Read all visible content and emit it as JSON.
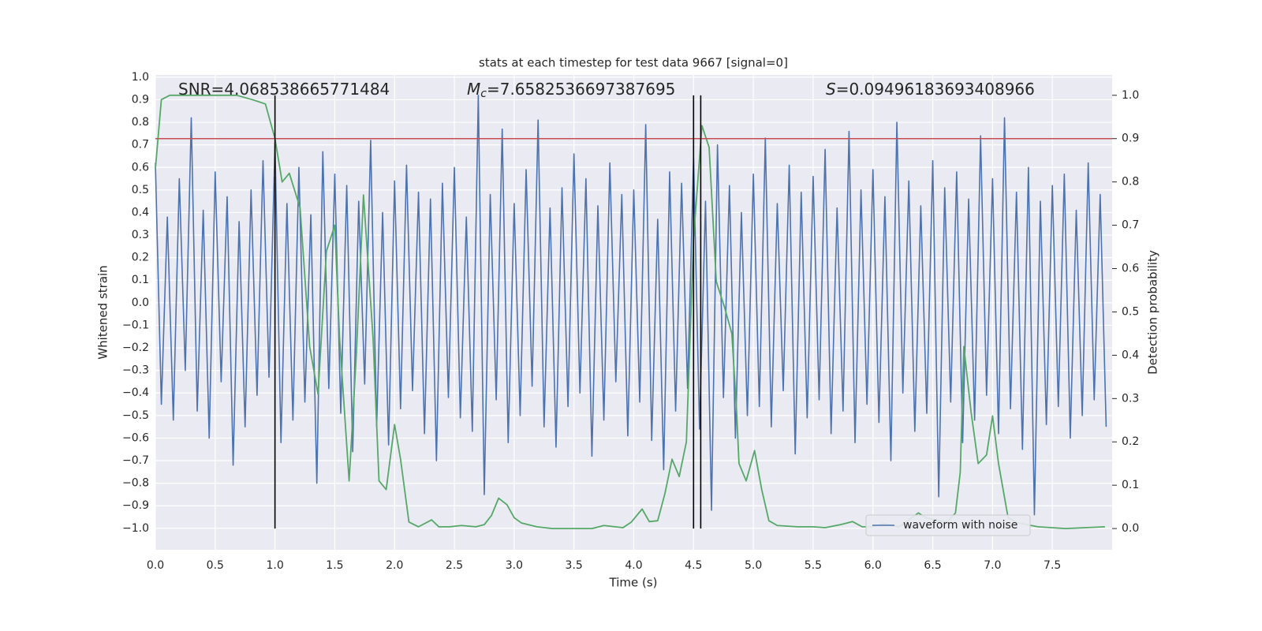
{
  "chart_data": {
    "type": "line",
    "title": "stats at each timestep for test data 9667 [signal=0]",
    "xlabel": "Time (s)",
    "ylabel": "Whitened strain",
    "y2label": "Detection probability",
    "annotations": [
      {
        "text": "SNR=4.068538665771484"
      },
      {
        "symbol": "M",
        "subscript": "c",
        "text": "=7.6582536697387695"
      },
      {
        "symbol": "S",
        "text": "=0.09496183693408966"
      }
    ],
    "xlim": [
      0,
      8.0
    ],
    "ylim": [
      -1.095,
      1.01
    ],
    "y2lim": [
      -0.049,
      1.047
    ],
    "xticks": [
      {
        "value": 0,
        "label": "0.0"
      },
      0.5,
      {
        "value": 1,
        "label": "1.0"
      },
      1.5,
      {
        "value": 2,
        "label": "2.0"
      },
      2.5,
      {
        "value": 3,
        "label": "3.0"
      },
      3.5,
      {
        "value": 4,
        "label": "4.0"
      },
      4.5,
      {
        "value": 5,
        "label": "5.0"
      },
      5.5,
      {
        "value": 6,
        "label": "6.0"
      },
      6.5,
      {
        "value": 7,
        "label": "7.0"
      },
      7.5
    ],
    "yticks": [
      {
        "value": -1,
        "label": "−1.0"
      },
      {
        "value": -0.9,
        "label": "−0.9"
      },
      {
        "value": -0.8,
        "label": "−0.8"
      },
      {
        "value": -0.7,
        "label": "−0.7"
      },
      {
        "value": -0.6,
        "label": "−0.6"
      },
      {
        "value": -0.5,
        "label": "−0.5"
      },
      {
        "value": -0.4,
        "label": "−0.4"
      },
      {
        "value": -0.3,
        "label": "−0.3"
      },
      {
        "value": -0.2,
        "label": "−0.2"
      },
      {
        "value": -0.1,
        "label": "−0.1"
      },
      {
        "value": 0,
        "label": "0.0"
      },
      0.1,
      0.2,
      0.3,
      0.4,
      0.5,
      0.6,
      0.7,
      0.8,
      0.9,
      {
        "value": 1,
        "label": "1.0"
      }
    ],
    "y2ticks": [
      {
        "value": 0,
        "label": "0.0"
      },
      0.1,
      0.2,
      0.3,
      0.4,
      0.5,
      0.6,
      0.7,
      0.8,
      0.9,
      {
        "value": 1,
        "label": "1.0"
      }
    ],
    "grid": true,
    "legend": "lower right",
    "hline": {
      "y2": 0.9,
      "color": "#c44e52"
    },
    "vlines": {
      "x": [
        1.0,
        4.5,
        4.56
      ],
      "y2min": 0,
      "y2max": 1,
      "color": "#000000"
    },
    "series": [
      {
        "name": "waveform with noise",
        "color": "#4c72b0",
        "x": [
          0,
          0.05,
          0.1,
          0.15,
          0.2,
          0.25,
          0.3,
          0.35,
          0.4,
          0.45,
          0.5,
          0.55,
          0.6,
          0.65,
          0.7,
          0.75,
          0.8,
          0.85,
          0.9,
          0.95,
          1,
          1.05,
          1.1,
          1.15,
          1.2,
          1.25,
          1.3,
          1.35,
          1.4,
          1.45,
          1.5,
          1.55,
          1.6,
          1.65,
          1.7,
          1.75,
          1.8,
          1.85,
          1.9,
          1.95,
          2,
          2.05,
          2.1,
          2.15,
          2.2,
          2.25,
          2.3,
          2.35,
          2.4,
          2.45,
          2.5,
          2.55,
          2.6,
          2.65,
          2.7,
          2.75,
          2.8,
          2.85,
          2.9,
          2.95,
          3,
          3.05,
          3.1,
          3.15,
          3.2,
          3.25,
          3.3,
          3.35,
          3.4,
          3.45,
          3.5,
          3.55,
          3.6,
          3.65,
          3.7,
          3.75,
          3.8,
          3.85,
          3.9,
          3.95,
          4,
          4.05,
          4.1,
          4.15,
          4.2,
          4.25,
          4.3,
          4.35,
          4.4,
          4.45,
          4.5,
          4.55,
          4.6,
          4.65,
          4.7,
          4.75,
          4.8,
          4.85,
          4.9,
          4.95,
          5,
          5.05,
          5.1,
          5.15,
          5.2,
          5.25,
          5.3,
          5.35,
          5.4,
          5.45,
          5.5,
          5.55,
          5.6,
          5.65,
          5.7,
          5.75,
          5.8,
          5.85,
          5.9,
          5.95,
          6,
          6.05,
          6.1,
          6.15,
          6.2,
          6.25,
          6.3,
          6.35,
          6.4,
          6.45,
          6.5,
          6.55,
          6.6,
          6.65,
          6.7,
          6.75,
          6.8,
          6.85,
          6.9,
          6.95,
          7,
          7.05,
          7.1,
          7.15,
          7.2,
          7.25,
          7.3,
          7.35,
          7.4,
          7.45,
          7.5,
          7.55,
          7.6,
          7.65,
          7.7,
          7.75,
          7.8,
          7.85,
          7.9,
          7.95
        ],
        "values": [
          0.62,
          -0.45,
          0.38,
          -0.52,
          0.55,
          -0.3,
          0.82,
          -0.48,
          0.41,
          -0.6,
          0.58,
          -0.35,
          0.47,
          -0.72,
          0.36,
          -0.55,
          0.5,
          -0.41,
          0.63,
          -0.33,
          0.71,
          -0.62,
          0.44,
          -0.52,
          0.6,
          -0.44,
          0.39,
          -0.8,
          0.67,
          -0.38,
          0.57,
          -0.49,
          0.52,
          -0.66,
          0.45,
          -0.36,
          0.72,
          -0.55,
          0.4,
          -0.63,
          0.54,
          -0.47,
          0.61,
          -0.39,
          0.49,
          -0.58,
          0.46,
          -0.7,
          0.53,
          -0.42,
          0.6,
          -0.51,
          0.38,
          -0.57,
          0.92,
          -0.85,
          0.48,
          -0.43,
          0.77,
          -0.62,
          0.44,
          -0.5,
          0.59,
          -0.37,
          0.81,
          -0.55,
          0.42,
          -0.64,
          0.51,
          -0.46,
          0.66,
          -0.4,
          0.55,
          -0.68,
          0.43,
          -0.52,
          0.62,
          -0.35,
          0.48,
          -0.59,
          0.5,
          -0.44,
          0.79,
          -0.61,
          0.37,
          -0.74,
          0.58,
          -0.48,
          0.53,
          -0.38,
          0.64,
          -0.56,
          0.45,
          -0.92,
          0.7,
          -0.42,
          0.52,
          -0.6,
          0.4,
          -0.5,
          0.57,
          -0.46,
          0.73,
          -0.55,
          0.44,
          -0.39,
          0.61,
          -0.67,
          0.49,
          -0.51,
          0.56,
          -0.43,
          0.68,
          -0.58,
          0.42,
          -0.48,
          0.76,
          -0.62,
          0.5,
          -0.45,
          0.59,
          -0.53,
          0.47,
          -0.7,
          0.8,
          -0.4,
          0.54,
          -0.57,
          0.43,
          -0.49,
          0.63,
          -0.86,
          0.51,
          -0.44,
          0.58,
          -0.62,
          0.46,
          -0.52,
          0.74,
          -0.41,
          0.55,
          -0.58,
          0.82,
          -0.47,
          0.49,
          -0.65,
          0.6,
          -0.94,
          0.45,
          -0.54,
          0.52,
          -0.46,
          0.57,
          -0.6,
          0.41,
          -0.5,
          0.62,
          -0.43,
          0.48,
          -0.55
        ]
      },
      {
        "color": "#55a868",
        "axis": "y2",
        "x": [
          0,
          0.05,
          0.12,
          0.68,
          0.81,
          0.92,
          1.0,
          1.06,
          1.12,
          1.21,
          1.29,
          1.36,
          1.43,
          1.5,
          1.54,
          1.62,
          1.68,
          1.74,
          1.82,
          1.87,
          1.93,
          2.0,
          2.05,
          2.12,
          2.2,
          2.31,
          2.37,
          2.46,
          2.56,
          2.68,
          2.75,
          2.81,
          2.87,
          2.94,
          3.0,
          3.06,
          3.19,
          3.32,
          3.65,
          3.75,
          3.91,
          3.98,
          4.07,
          4.13,
          4.2,
          4.26,
          4.32,
          4.38,
          4.44,
          4.5,
          4.57,
          4.63,
          4.69,
          4.76,
          4.82,
          4.86,
          4.88,
          4.94,
          5.01,
          5.07,
          5.13,
          5.2,
          5.37,
          5.5,
          5.6,
          5.73,
          5.83,
          5.91,
          5.99,
          6.09,
          6.22,
          6.29,
          6.38,
          6.44,
          6.52,
          6.62,
          6.69,
          6.73,
          6.76,
          6.82,
          6.88,
          6.95,
          7.0,
          7.05,
          7.13,
          7.21,
          7.38,
          7.61,
          7.94
        ],
        "values": [
          0.83,
          0.99,
          1.0,
          1.0,
          0.99,
          0.98,
          0.9,
          0.8,
          0.82,
          0.74,
          0.42,
          0.31,
          0.64,
          0.7,
          0.44,
          0.11,
          0.4,
          0.77,
          0.44,
          0.11,
          0.09,
          0.24,
          0.16,
          0.015,
          0.004,
          0.02,
          0.004,
          0.004,
          0.007,
          0.004,
          0.009,
          0.03,
          0.07,
          0.055,
          0.025,
          0.013,
          0.004,
          0.0,
          0.0,
          0.007,
          0.002,
          0.015,
          0.045,
          0.016,
          0.018,
          0.08,
          0.16,
          0.12,
          0.2,
          0.67,
          0.93,
          0.88,
          0.57,
          0.51,
          0.45,
          0.27,
          0.15,
          0.11,
          0.18,
          0.09,
          0.018,
          0.007,
          0.004,
          0.004,
          0.002,
          0.009,
          0.016,
          0.004,
          0.004,
          0.011,
          0.004,
          0.018,
          0.036,
          0.025,
          0.02,
          0.015,
          0.036,
          0.13,
          0.42,
          0.27,
          0.15,
          0.17,
          0.26,
          0.15,
          0.025,
          0.013,
          0.004,
          0.0,
          0.004
        ]
      }
    ]
  }
}
